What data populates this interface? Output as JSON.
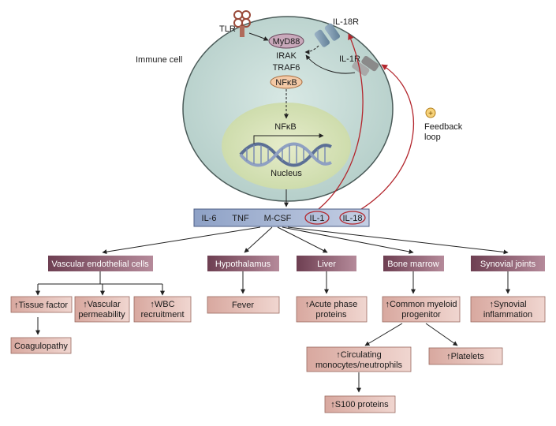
{
  "cell": {
    "immune_cell": "Immune cell",
    "tlr": "TLR",
    "myd88": "MyD88",
    "irak": "IRAK",
    "traf6": "TRAF6",
    "nfkb_cyto": "NFκB",
    "nfkb_nuc": "NFκB",
    "nucleus": "Nucleus",
    "il18r": "IL-18R",
    "il1r": "IL-1R",
    "feedback_sign": "+",
    "feedback_line1": "Feedback",
    "feedback_line2": "loop"
  },
  "cytokines": [
    "IL-6",
    "TNF",
    "M-CSF",
    "IL-1",
    "IL-18"
  ],
  "targets": [
    "Vascular endothelial cells",
    "Hypothalamus",
    "Liver",
    "Bone marrow",
    "Synovial joints"
  ],
  "effects": {
    "tissue_factor": "↑Tissue factor",
    "coagulopathy": "Coagulopathy",
    "vascular_permeability_1": "↑Vascular",
    "vascular_permeability_2": "permeability",
    "wbc_1": "↑WBC",
    "wbc_2": "recruitment",
    "fever": "Fever",
    "acute_phase_1": "↑Acute phase",
    "acute_phase_2": "proteins",
    "myeloid_1": "↑Common myeloid",
    "myeloid_2": "progenitor",
    "circulating_1": "↑Circulating",
    "circulating_2": "monocytes/neutrophils",
    "platelets": "↑Platelets",
    "s100": "↑S100 proteins",
    "synovial_1": "↑Synovial",
    "synovial_2": "inflammation"
  },
  "colors": {
    "cell_fill": "#c6dcd8",
    "nucleus_fill": "#d6e2b8",
    "header_fill": "#8a5a6c",
    "effect_fill": "#e2bcb4",
    "cytokine_bar": "#a9b8d6",
    "feedback_red": "#b3262d",
    "nfkb_fill": "#f3c9a6",
    "myd88_fill": "#c9a9bb"
  }
}
